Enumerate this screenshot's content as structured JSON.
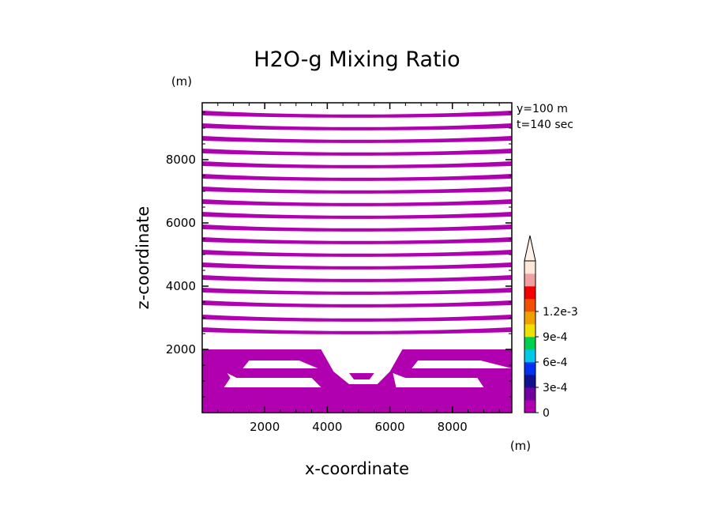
{
  "chart_data": {
    "type": "heatmap",
    "title": "H2O-g Mixing Ratio",
    "xlabel": "x-coordinate",
    "ylabel": "z-coordinate",
    "x_unit": "(m)",
    "y_unit": "(m)",
    "annotations": [
      "y=100 m",
      "t=140 sec"
    ],
    "xlim": [
      0,
      9900
    ],
    "ylim": [
      0,
      9800
    ],
    "x_ticks": [
      2000,
      4000,
      6000,
      8000
    ],
    "y_ticks": [
      2000,
      4000,
      6000,
      8000
    ],
    "x_tick_labels": [
      "2000",
      "4000",
      "6000",
      "8000"
    ],
    "y_tick_labels": [
      "2000",
      "4000",
      "6000",
      "8000"
    ],
    "colorbar": {
      "labels": [
        "0",
        "3e-4",
        "6e-4",
        "9e-4",
        "1.2e-3"
      ],
      "label_values": [
        0,
        0.0003,
        0.0006,
        0.0009,
        0.0012
      ],
      "levels": [
        0,
        0.00015,
        0.0003,
        0.00045,
        0.0006,
        0.00075,
        0.0009,
        0.00105,
        0.0012,
        0.00135
      ],
      "colors": [
        "#b000b0",
        "#7000a0",
        "#101090",
        "#0030f0",
        "#00c8e8",
        "#00d050",
        "#f0e000",
        "#f0a000",
        "#f05000",
        "#f00000",
        "#f0a0a0",
        "#fde8d8"
      ],
      "extend": "max"
    },
    "field": {
      "color": "#b000b0",
      "upper_bands_z": [
        [
          9400,
          9550
        ],
        [
          9000,
          9150
        ],
        [
          8600,
          8750
        ],
        [
          8200,
          8350
        ],
        [
          7800,
          7950
        ],
        [
          7400,
          7550
        ],
        [
          7000,
          7150
        ],
        [
          6600,
          6750
        ],
        [
          6200,
          6350
        ],
        [
          5800,
          5950
        ],
        [
          5400,
          5550
        ],
        [
          5000,
          5150
        ],
        [
          4600,
          4750
        ],
        [
          4200,
          4350
        ],
        [
          3800,
          3950
        ],
        [
          3400,
          3550
        ],
        [
          2950,
          3100
        ],
        [
          2550,
          2700
        ]
      ],
      "upper_band_sag": 120,
      "lower_region_z": [
        0,
        2000
      ],
      "top_channel_z": [
        1400,
        1650
      ],
      "bottom_channel_z": [
        800,
        1100
      ],
      "central_gap_x": [
        3500,
        6700
      ],
      "central_blob": {
        "x": [
          4700,
          5500
        ],
        "z": [
          1050,
          1250
        ]
      }
    }
  }
}
